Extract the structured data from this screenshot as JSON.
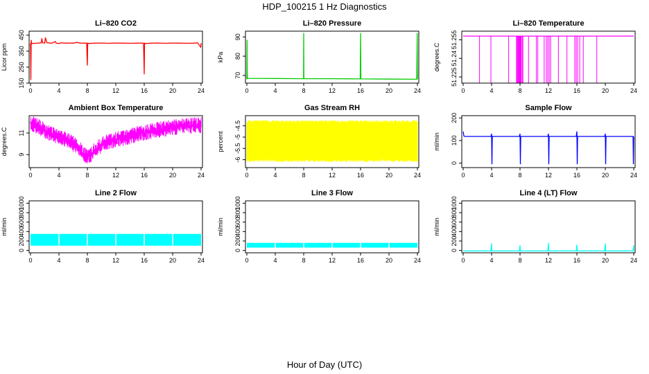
{
  "figure": {
    "title": "HDP_100215  1 Hz Diagnostics",
    "xlabel": "Hour of Day (UTC)"
  },
  "chart_data": [
    {
      "type": "line",
      "title": "Li–820 CO2",
      "ylabel": "Licor ppm",
      "color": "#ff0000",
      "xlim": [
        0,
        24
      ],
      "ylim": [
        150,
        475
      ],
      "xticks": [
        0,
        4,
        8,
        12,
        16,
        20,
        24
      ],
      "yticks": [
        150,
        250,
        350,
        450
      ],
      "series": [
        {
          "x": [
            0,
            0.05,
            0.1,
            0.15,
            0.2,
            1.0,
            1.5,
            1.6,
            1.7,
            2.0,
            2.1,
            2.3,
            3.0,
            3.5,
            3.6,
            4.0,
            4.3,
            5.0,
            5.5,
            6.0,
            6.5,
            7.0,
            7.5,
            7.9,
            8.0,
            8.05,
            8.1,
            9.0,
            10.0,
            11.0,
            11.5,
            12.0,
            13.0,
            14.0,
            15.0,
            15.5,
            15.9,
            16.0,
            16.05,
            16.1,
            17.0,
            18.0,
            19.0,
            19.5,
            20.0,
            21.0,
            22.0,
            23.0,
            23.5,
            23.95,
            24.0
          ],
          "y": [
            400,
            170,
            420,
            405,
            398,
            400,
            402,
            430,
            402,
            400,
            435,
            402,
            400,
            410,
            400,
            398,
            402,
            400,
            401,
            400,
            405,
            400,
            401,
            400,
            260,
            402,
            398,
            400,
            401,
            399,
            400,
            401,
            400,
            399,
            400,
            401,
            400,
            205,
            402,
            398,
            400,
            401,
            399,
            400,
            401,
            400,
            399,
            400,
            402,
            375,
            400
          ]
        }
      ]
    },
    {
      "type": "line",
      "title": "Li–820 Pressure",
      "ylabel": "kPa",
      "color": "#00cc00",
      "xlim": [
        0,
        24
      ],
      "ylim": [
        66,
        93
      ],
      "xticks": [
        0,
        4,
        8,
        12,
        16,
        20,
        24
      ],
      "yticks": [
        70,
        80,
        90
      ],
      "series": [
        {
          "x": [
            0,
            0.03,
            0.06,
            0.1,
            4,
            7.98,
            8.0,
            8.03,
            12,
            15.95,
            16.0,
            16.05,
            20,
            23.9,
            23.97,
            24.0
          ],
          "y": [
            68,
            88.5,
            70.5,
            68.5,
            68.4,
            68.3,
            92,
            68.3,
            68.3,
            68.2,
            92,
            68.2,
            68.1,
            68.0,
            92,
            68.0
          ]
        }
      ]
    },
    {
      "type": "line",
      "title": "Li–820 Temperature",
      "ylabel": "degrees.C",
      "color": "#ff00ff",
      "xlim": [
        0,
        24
      ],
      "ylim": [
        51.22,
        51.262
      ],
      "xticks": [
        0,
        4,
        8,
        12,
        16,
        20,
        24
      ],
      "yticks": [
        51.225,
        51.24,
        51.255
      ],
      "dropouts": [
        2.3,
        3.9,
        6.4,
        7.5,
        7.6,
        7.7,
        7.8,
        7.9,
        8.0,
        8.05,
        8.15,
        8.3,
        8.4,
        9.2,
        10.3,
        10.5,
        11.4,
        11.7,
        11.9,
        12.1,
        12.3,
        13.4,
        14.6,
        15.7,
        15.9,
        16.1,
        16.4,
        16.9,
        18.8
      ],
      "series": [
        {
          "x": [
            0,
            24
          ],
          "y": [
            51.258,
            51.258
          ]
        }
      ]
    },
    {
      "type": "line",
      "title": "Ambient Box Temperature",
      "ylabel": "degrees.C",
      "color": "#ff00ff",
      "xlim": [
        0,
        24
      ],
      "ylim": [
        7.8,
        12.6
      ],
      "xticks": [
        0,
        4,
        8,
        12,
        16,
        20,
        24
      ],
      "yticks": [
        9,
        11
      ],
      "series": [
        {
          "x": [
            0,
            1,
            2,
            3,
            4,
            5,
            6,
            7,
            7.5,
            8,
            8.5,
            9,
            10,
            11,
            12,
            13,
            14,
            15,
            16,
            17,
            18,
            19,
            20,
            21,
            22,
            23,
            24
          ],
          "y": [
            11.9,
            11.6,
            11.2,
            10.9,
            10.7,
            10.4,
            10.0,
            9.5,
            9.0,
            8.8,
            9.0,
            9.4,
            9.9,
            10.2,
            10.4,
            10.5,
            10.7,
            10.9,
            11.0,
            11.2,
            11.3,
            11.4,
            11.5,
            11.6,
            11.65,
            11.7,
            11.7
          ]
        }
      ]
    },
    {
      "type": "line",
      "title": "Gas Stream RH",
      "ylabel": "percent",
      "color": "#ffff00",
      "xlim": [
        0,
        24
      ],
      "ylim": [
        -6.35,
        -4.05
      ],
      "xticks": [
        0,
        4,
        8,
        12,
        16,
        20,
        24
      ],
      "yticks": [
        -6.0,
        -5.5,
        -5.0,
        -4.5
      ],
      "series": [
        {
          "x": [
            0,
            24
          ],
          "y": [
            -5.2,
            -5.2
          ],
          "range": [
            -6.1,
            -4.25
          ]
        }
      ]
    },
    {
      "type": "line",
      "title": "Sample Flow",
      "ylabel": "ml/min",
      "color": "#0000ff",
      "xlim": [
        0,
        24
      ],
      "ylim": [
        -20,
        210
      ],
      "xticks": [
        0,
        4,
        8,
        12,
        16,
        20,
        24
      ],
      "yticks": [
        0,
        100,
        200
      ],
      "series": [
        {
          "x": [
            0,
            0.1,
            0.2,
            2,
            3.9,
            4.0,
            4.05,
            4.1,
            6,
            7.9,
            8.0,
            8.05,
            8.1,
            10,
            11.9,
            12.0,
            12.05,
            12.1,
            14,
            15.9,
            16.0,
            16.05,
            16.1,
            18,
            19.9,
            20.0,
            20.05,
            20.1,
            22,
            23.9,
            23.95,
            24.0
          ],
          "y": [
            140,
            120,
            118,
            118,
            118,
            130,
            -5,
            118,
            118,
            118,
            130,
            -5,
            118,
            118,
            118,
            130,
            -5,
            118,
            118,
            118,
            140,
            -5,
            118,
            118,
            118,
            130,
            -5,
            118,
            118,
            118,
            -5,
            118
          ]
        }
      ]
    },
    {
      "type": "area",
      "title": "Line 2 Flow",
      "ylabel": "ml/min",
      "color": "#00ffff",
      "xlim": [
        0,
        24
      ],
      "ylim": [
        -50,
        1050
      ],
      "xticks": [
        0,
        4,
        8,
        12,
        16,
        20,
        24
      ],
      "yticks": [
        0,
        200,
        400,
        600,
        800,
        1000
      ],
      "gaps": [
        4,
        8,
        12,
        16,
        20
      ],
      "series": [
        {
          "x": [
            0,
            24
          ],
          "y": [
            350,
            350
          ],
          "base": 100
        }
      ]
    },
    {
      "type": "area",
      "title": "Line 3 Flow",
      "ylabel": "ml/min",
      "color": "#00ffff",
      "xlim": [
        0,
        24
      ],
      "ylim": [
        -50,
        1050
      ],
      "xticks": [
        0,
        4,
        8,
        12,
        16,
        20,
        24
      ],
      "yticks": [
        0,
        200,
        400,
        600,
        800,
        1000
      ],
      "gaps": [
        4,
        8,
        12,
        16,
        20
      ],
      "series": [
        {
          "x": [
            0,
            24
          ],
          "y": [
            160,
            160
          ],
          "base": 60
        }
      ]
    },
    {
      "type": "line",
      "title": "Line 4 (LT) Flow",
      "ylabel": "ml/min",
      "color": "#00ffff",
      "xlim": [
        0,
        24
      ],
      "ylim": [
        -50,
        1050
      ],
      "xticks": [
        0,
        4,
        8,
        12,
        16,
        20,
        24
      ],
      "yticks": [
        0,
        200,
        400,
        600,
        800,
        1000
      ],
      "series": [
        {
          "x": [
            0,
            3.9,
            4.0,
            4.05,
            7.9,
            8.0,
            8.05,
            11.9,
            12.0,
            12.05,
            15.9,
            16.0,
            16.05,
            19.9,
            20.0,
            20.05,
            23.9,
            24.0,
            24.0
          ],
          "y": [
            -10,
            -10,
            150,
            -10,
            -10,
            110,
            -10,
            -10,
            160,
            -10,
            -10,
            120,
            -10,
            -10,
            150,
            -10,
            -10,
            110,
            -10
          ]
        }
      ]
    }
  ]
}
